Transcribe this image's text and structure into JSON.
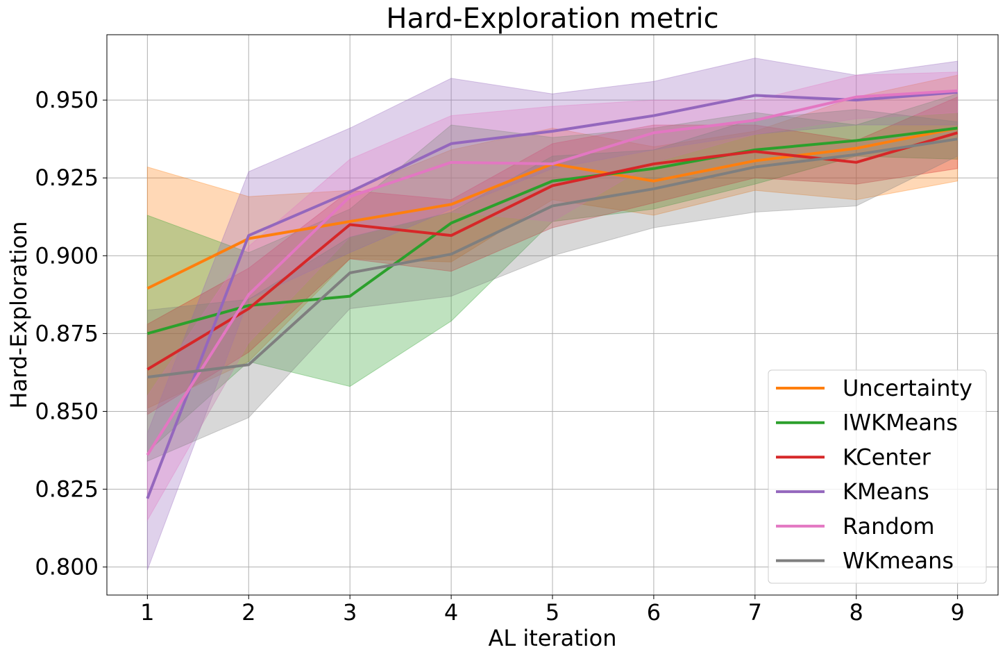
{
  "chart_data": {
    "type": "line",
    "title": "Hard-Exploration metric",
    "xlabel": "AL iteration",
    "ylabel": "Hard-Exploration",
    "x": [
      1,
      2,
      3,
      4,
      5,
      6,
      7,
      8,
      9
    ],
    "xlim": [
      0.6,
      9.4
    ],
    "ylim": [
      0.791,
      0.971
    ],
    "yticks": [
      0.8,
      0.825,
      0.85,
      0.875,
      0.9,
      0.925,
      0.95
    ],
    "ytick_labels": [
      "0.800",
      "0.825",
      "0.850",
      "0.875",
      "0.900",
      "0.925",
      "0.950"
    ],
    "xtick_labels": [
      "1",
      "2",
      "3",
      "4",
      "5",
      "6",
      "7",
      "8",
      "9"
    ],
    "grid": true,
    "legend_position": "bottom-right",
    "series": [
      {
        "name": "Uncertainty",
        "color": "#ff7f0e",
        "values": [
          0.8895,
          0.9055,
          0.911,
          0.9165,
          0.9295,
          0.924,
          0.9305,
          0.9345,
          0.941
        ],
        "lower": [
          0.851,
          0.866,
          0.899,
          0.898,
          0.918,
          0.913,
          0.921,
          0.918,
          0.924
        ],
        "upper": [
          0.9285,
          0.919,
          0.921,
          0.934,
          0.941,
          0.935,
          0.94,
          0.951,
          0.958
        ]
      },
      {
        "name": "IWKMeans",
        "color": "#2ca02c",
        "values": [
          0.875,
          0.884,
          0.887,
          0.9105,
          0.924,
          0.928,
          0.934,
          0.937,
          0.941
        ],
        "lower": [
          0.837,
          0.866,
          0.858,
          0.879,
          0.911,
          0.915,
          0.923,
          0.932,
          0.931
        ],
        "upper": [
          0.913,
          0.901,
          0.915,
          0.942,
          0.938,
          0.941,
          0.946,
          0.942,
          0.952
        ]
      },
      {
        "name": "KCenter",
        "color": "#d62728",
        "values": [
          0.8635,
          0.883,
          0.91,
          0.9065,
          0.9225,
          0.9295,
          0.9335,
          0.93,
          0.9395
        ],
        "lower": [
          0.849,
          0.869,
          0.899,
          0.895,
          0.909,
          0.917,
          0.925,
          0.923,
          0.928
        ],
        "upper": [
          0.878,
          0.896,
          0.921,
          0.918,
          0.936,
          0.942,
          0.942,
          0.937,
          0.951
        ]
      },
      {
        "name": "KMeans",
        "color": "#9467bd",
        "values": [
          0.822,
          0.9065,
          0.9205,
          0.936,
          0.94,
          0.945,
          0.9515,
          0.95,
          0.9525
        ],
        "lower": [
          0.799,
          0.886,
          0.901,
          0.915,
          0.928,
          0.934,
          0.939,
          0.942,
          0.942
        ],
        "upper": [
          0.843,
          0.927,
          0.941,
          0.957,
          0.952,
          0.956,
          0.9635,
          0.958,
          0.9625
        ]
      },
      {
        "name": "Random",
        "color": "#e377c2",
        "values": [
          0.836,
          0.8875,
          0.919,
          0.93,
          0.9295,
          0.9395,
          0.9435,
          0.951,
          0.953
        ],
        "lower": [
          0.815,
          0.872,
          0.906,
          0.914,
          0.911,
          0.93,
          0.939,
          0.944,
          0.946
        ],
        "upper": [
          0.855,
          0.903,
          0.931,
          0.945,
          0.948,
          0.95,
          0.95,
          0.958,
          0.959
        ]
      },
      {
        "name": "WKmeans",
        "color": "#7f7f7f",
        "values": [
          0.861,
          0.865,
          0.8945,
          0.9005,
          0.916,
          0.9215,
          0.9285,
          0.9325,
          0.9375
        ],
        "lower": [
          0.834,
          0.848,
          0.883,
          0.887,
          0.9,
          0.909,
          0.914,
          0.916,
          0.932
        ],
        "upper": [
          0.8825,
          0.886,
          0.906,
          0.914,
          0.932,
          0.934,
          0.944,
          0.947,
          0.943
        ]
      }
    ]
  }
}
